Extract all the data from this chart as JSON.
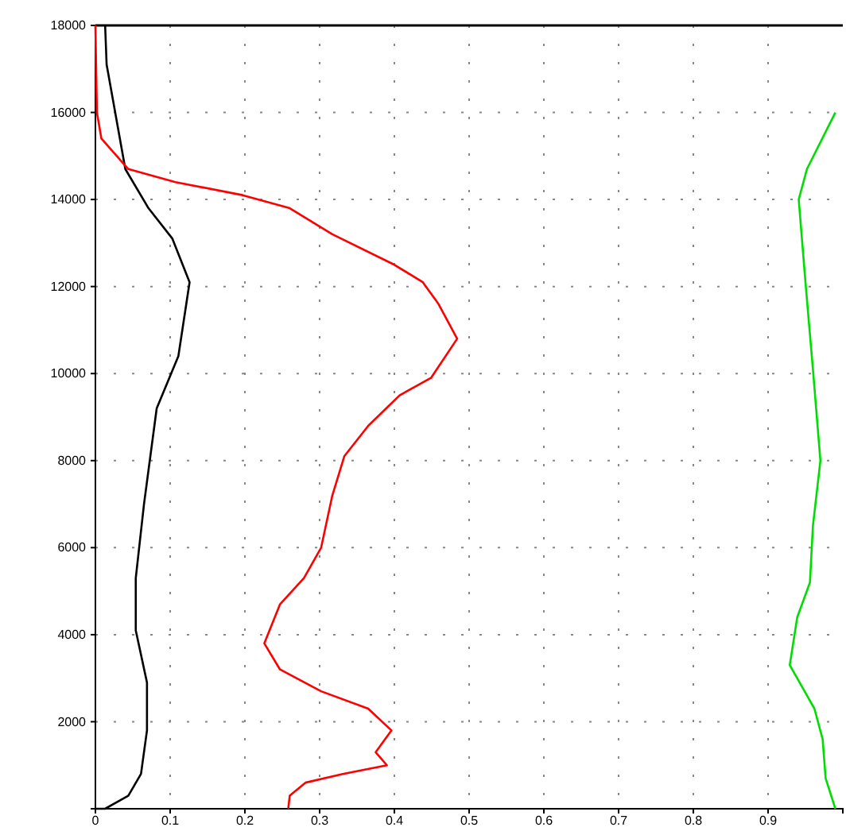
{
  "chart_data": {
    "type": "line",
    "xlim": [
      0,
      1
    ],
    "ylim": [
      0,
      18000
    ],
    "xticks": [
      0,
      0.1,
      0.2,
      0.3,
      0.4,
      0.5,
      0.6,
      0.7,
      0.8,
      0.9
    ],
    "yticks": [
      2000,
      4000,
      6000,
      8000,
      10000,
      12000,
      14000,
      16000,
      18000
    ],
    "grid": true,
    "line_style": "solid",
    "marker": "none",
    "series": [
      {
        "color": "#000000",
        "x": [
          0.013,
          0.015,
          0.04,
          0.071,
          0.103,
          0.126,
          0.111,
          0.082,
          0.065,
          0.054,
          0.054,
          0.069,
          0.069,
          0.061,
          0.044,
          0.013,
          0
        ],
        "values": [
          18000,
          17100,
          14700,
          13800,
          13100,
          12100,
          10400,
          9200,
          7000,
          5300,
          4100,
          2900,
          1800,
          800,
          300,
          0,
          0
        ]
      },
      {
        "color": "#ff0000",
        "x": [
          0,
          0.002,
          0.008,
          0.044,
          0.107,
          0.197,
          0.26,
          0.317,
          0.4,
          0.438,
          0.459,
          0.484,
          0.449,
          0.407,
          0.365,
          0.333,
          0.317,
          0.302,
          0.279,
          0.247,
          0.226,
          0.247,
          0.302,
          0.365,
          0.396,
          0.375,
          0.39,
          0.331,
          0.281,
          0.26,
          0.258
        ],
        "values": [
          18000,
          16000,
          15400,
          14700,
          14400,
          14100,
          13800,
          13200,
          12500,
          12100,
          11600,
          10800,
          9900,
          9500,
          8800,
          8100,
          7200,
          6000,
          5300,
          4700,
          3800,
          3200,
          2700,
          2300,
          1800,
          1300,
          1000,
          800,
          600,
          300,
          0
        ]
      },
      {
        "color": "#00dd00",
        "x": [
          0.99,
          0.952,
          0.941,
          0.95,
          0.96,
          0.97,
          0.96,
          0.956,
          0.939,
          0.929,
          0.962,
          0.973,
          0.977,
          0.99
        ],
        "values": [
          16000,
          14700,
          14000,
          12100,
          10100,
          8000,
          6500,
          5200,
          4400,
          3300,
          2300,
          1600,
          700,
          0
        ]
      }
    ]
  }
}
